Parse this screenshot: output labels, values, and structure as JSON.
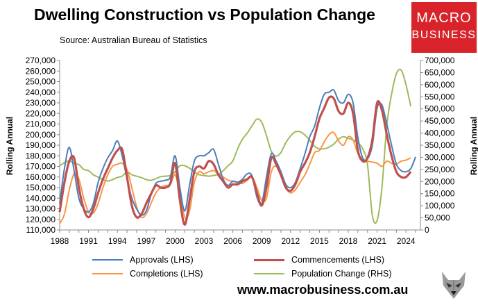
{
  "chart_data": {
    "type": "line",
    "title": "Dwelling Construction vs Population Change",
    "subtitle": "Source: Australian Bureau of Statistics",
    "ylabel_left": "Rolling Annual",
    "ylabel_right": "Rolling Annual",
    "ylim_left": [
      110000,
      270000
    ],
    "ylim_right": [
      0,
      700000
    ],
    "xlim": [
      1988,
      2025.5
    ],
    "grid": false,
    "legend_position": "bottom",
    "x_ticks": [
      1988,
      1991,
      1994,
      1997,
      2000,
      2003,
      2006,
      2009,
      2012,
      2015,
      2018,
      2021,
      2024
    ],
    "y_ticks_left": [
      "270,000",
      "260,000",
      "250,000",
      "240,000",
      "230,000",
      "220,000",
      "210,000",
      "200,000",
      "190,000",
      "180,000",
      "170,000",
      "160,000",
      "150,000",
      "140,000",
      "130,000",
      "120,000",
      "110,000"
    ],
    "y_ticks_right": [
      "700,000",
      "650,000",
      "600,000",
      "550,000",
      "500,000",
      "450,000",
      "400,000",
      "350,000",
      "300,000",
      "250,000",
      "200,000",
      "150,000",
      "100,000",
      "50,000",
      "0"
    ],
    "series": [
      {
        "name": "Approvals (LHS)",
        "axis": "left",
        "color": "#4a7ebb",
        "x": [
          1988,
          1988.5,
          1989,
          1989.5,
          1990,
          1990.5,
          1991,
          1991.5,
          1992,
          1992.5,
          1993,
          1993.5,
          1994,
          1994.5,
          1995,
          1995.5,
          1996,
          1996.5,
          1997,
          1997.5,
          1998,
          1998.5,
          1999,
          1999.5,
          2000,
          2000.5,
          2001,
          2001.5,
          2002,
          2002.5,
          2003,
          2003.5,
          2004,
          2004.5,
          2005,
          2005.5,
          2006,
          2006.5,
          2007,
          2007.5,
          2008,
          2008.5,
          2009,
          2009.5,
          2010,
          2010.5,
          2011,
          2011.5,
          2012,
          2012.5,
          2013,
          2013.5,
          2014,
          2014.5,
          2015,
          2015.5,
          2016,
          2016.5,
          2017,
          2017.5,
          2018,
          2018.5,
          2019,
          2019.5,
          2020,
          2020.5,
          2021,
          2021.5,
          2022,
          2022.5,
          2023,
          2023.5,
          2024,
          2024.5,
          2025
        ],
        "y": [
          135000,
          168000,
          188000,
          166000,
          140000,
          130000,
          127000,
          135000,
          155000,
          168000,
          178000,
          185000,
          194000,
          180000,
          158000,
          140000,
          130000,
          124000,
          128000,
          143000,
          154000,
          156000,
          157000,
          160000,
          180000,
          150000,
          128000,
          152000,
          175000,
          180000,
          180000,
          183000,
          186000,
          172000,
          158000,
          152000,
          156000,
          155000,
          158000,
          163000,
          161000,
          141000,
          135000,
          160000,
          182000,
          175000,
          165000,
          153000,
          150000,
          155000,
          168000,
          182000,
          198000,
          208000,
          225000,
          238000,
          240000,
          242000,
          232000,
          230000,
          238000,
          230000,
          197000,
          178000,
          177000,
          190000,
          225000,
          228000,
          210000,
          190000,
          172000,
          166000,
          165000,
          168000,
          179000
        ]
      },
      {
        "name": "Commencements (LHS)",
        "axis": "left",
        "color": "#c0504d",
        "x": [
          1988,
          1988.5,
          1989,
          1989.5,
          1990,
          1990.5,
          1991,
          1991.5,
          1992,
          1992.5,
          1993,
          1993.5,
          1994,
          1994.5,
          1995,
          1995.5,
          1996,
          1996.5,
          1997,
          1997.5,
          1998,
          1998.5,
          1999,
          1999.5,
          2000,
          2000.5,
          2001,
          2001.5,
          2002,
          2002.5,
          2003,
          2003.5,
          2004,
          2004.5,
          2005,
          2005.5,
          2006,
          2006.5,
          2007,
          2007.5,
          2008,
          2008.5,
          2009,
          2009.5,
          2010,
          2010.5,
          2011,
          2011.5,
          2012,
          2012.5,
          2013,
          2013.5,
          2014,
          2014.5,
          2015,
          2015.5,
          2016,
          2016.5,
          2017,
          2017.5,
          2018,
          2018.5,
          2019,
          2019.5,
          2020,
          2020.5,
          2021,
          2021.5,
          2022,
          2022.5,
          2023,
          2023.5,
          2024,
          2024.5
        ],
        "y": [
          127000,
          155000,
          175000,
          178000,
          150000,
          130000,
          122000,
          130000,
          145000,
          158000,
          168000,
          178000,
          185000,
          186000,
          160000,
          133000,
          122000,
          125000,
          135000,
          144000,
          152000,
          150000,
          150000,
          154000,
          173000,
          138000,
          115000,
          138000,
          165000,
          170000,
          168000,
          175000,
          172000,
          162000,
          156000,
          150000,
          153000,
          153000,
          156000,
          158000,
          160000,
          145000,
          133000,
          150000,
          178000,
          172000,
          162000,
          150000,
          147000,
          153000,
          165000,
          173000,
          183000,
          198000,
          215000,
          225000,
          235000,
          234000,
          222000,
          220000,
          230000,
          220000,
          185000,
          175000,
          178000,
          195000,
          230000,
          223000,
          200000,
          180000,
          165000,
          160000,
          160000,
          165000
        ]
      },
      {
        "name": "Completions (LHS)",
        "axis": "left",
        "color": "#f79646",
        "x": [
          1988,
          1988.5,
          1989,
          1989.5,
          1990,
          1990.5,
          1991,
          1991.5,
          1992,
          1992.5,
          1993,
          1993.5,
          1994,
          1994.5,
          1995,
          1995.5,
          1996,
          1996.5,
          1997,
          1997.5,
          1998,
          1998.5,
          1999,
          1999.5,
          2000,
          2000.5,
          2001,
          2001.5,
          2002,
          2002.5,
          2003,
          2003.5,
          2004,
          2004.5,
          2005,
          2005.5,
          2006,
          2006.5,
          2007,
          2007.5,
          2008,
          2008.5,
          2009,
          2009.5,
          2010,
          2010.5,
          2011,
          2011.5,
          2012,
          2012.5,
          2013,
          2013.5,
          2014,
          2014.5,
          2015,
          2015.5,
          2016,
          2016.5,
          2017,
          2017.5,
          2018,
          2018.5,
          2019,
          2019.5,
          2020,
          2020.5,
          2021,
          2021.5,
          2022,
          2022.5,
          2023,
          2023.5,
          2024,
          2024.5
        ],
        "y": [
          116000,
          125000,
          148000,
          163000,
          158000,
          140000,
          127000,
          126000,
          135000,
          150000,
          162000,
          170000,
          172000,
          173000,
          167000,
          150000,
          132000,
          122000,
          125000,
          135000,
          145000,
          150000,
          152000,
          153000,
          162000,
          145000,
          122000,
          128000,
          155000,
          165000,
          163000,
          165000,
          166000,
          163000,
          160000,
          157000,
          156000,
          155000,
          154000,
          157000,
          160000,
          150000,
          138000,
          140000,
          165000,
          170000,
          162000,
          150000,
          145000,
          148000,
          155000,
          162000,
          172000,
          183000,
          185000,
          193000,
          200000,
          202000,
          194000,
          190000,
          198000,
          195000,
          182000,
          177000,
          175000,
          174000,
          173000,
          170000,
          175000,
          173000,
          172000,
          175000,
          176000,
          178000
        ]
      },
      {
        "name": "Population Change (RHS)",
        "axis": "right",
        "color": "#9bbb59",
        "x": [
          1988,
          1988.5,
          1989,
          1989.5,
          1990,
          1990.5,
          1991,
          1991.5,
          1992,
          1992.5,
          1993,
          1993.5,
          1994,
          1994.5,
          1995,
          1995.5,
          1996,
          1996.5,
          1997,
          1997.5,
          1998,
          1998.5,
          1999,
          1999.5,
          2000,
          2000.5,
          2001,
          2001.5,
          2002,
          2002.5,
          2003,
          2003.5,
          2004,
          2004.5,
          2005,
          2005.5,
          2006,
          2006.5,
          2007,
          2007.5,
          2008,
          2008.5,
          2009,
          2009.5,
          2010,
          2010.5,
          2011,
          2011.5,
          2012,
          2012.5,
          2013,
          2013.5,
          2014,
          2014.5,
          2015,
          2015.5,
          2016,
          2016.5,
          2017,
          2017.5,
          2018,
          2018.5,
          2019,
          2019.5,
          2020,
          2020.5,
          2021,
          2021.5,
          2022,
          2022.5,
          2023,
          2023.5,
          2024,
          2024.5
        ],
        "y": [
          265000,
          278000,
          285000,
          275000,
          270000,
          250000,
          245000,
          228000,
          218000,
          208000,
          202000,
          208000,
          217000,
          222000,
          240000,
          228000,
          222000,
          216000,
          208000,
          205000,
          212000,
          220000,
          222000,
          225000,
          240000,
          265000,
          265000,
          255000,
          240000,
          228000,
          225000,
          222000,
          225000,
          230000,
          245000,
          265000,
          285000,
          335000,
          375000,
          400000,
          430000,
          458000,
          445000,
          390000,
          325000,
          305000,
          320000,
          360000,
          388000,
          405000,
          405000,
          392000,
          370000,
          345000,
          335000,
          335000,
          342000,
          355000,
          375000,
          385000,
          378000,
          372000,
          360000,
          335000,
          270000,
          60000,
          40000,
          175000,
          430000,
          560000,
          645000,
          660000,
          600000,
          510000
        ]
      }
    ]
  },
  "footer": {
    "url": "www.macrobusiness.com.au"
  },
  "logo": {
    "line1": "MACRO",
    "line2": "BUSINESS"
  }
}
